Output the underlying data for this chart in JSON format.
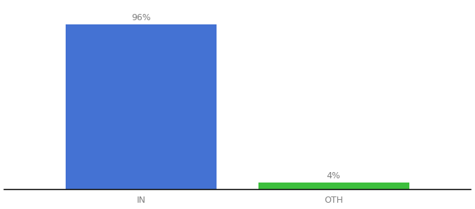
{
  "categories": [
    "IN",
    "OTH"
  ],
  "values": [
    96,
    4
  ],
  "bar_colors": [
    "#4472d3",
    "#3dbf3d"
  ],
  "labels": [
    "96%",
    "4%"
  ],
  "background_color": "#ffffff",
  "ylim": [
    0,
    108
  ],
  "bar_width": 0.55,
  "label_fontsize": 9,
  "tick_fontsize": 9,
  "tick_color": "#7f7f7f",
  "spine_color": "#111111",
  "xlim": [
    -0.1,
    1.6
  ]
}
